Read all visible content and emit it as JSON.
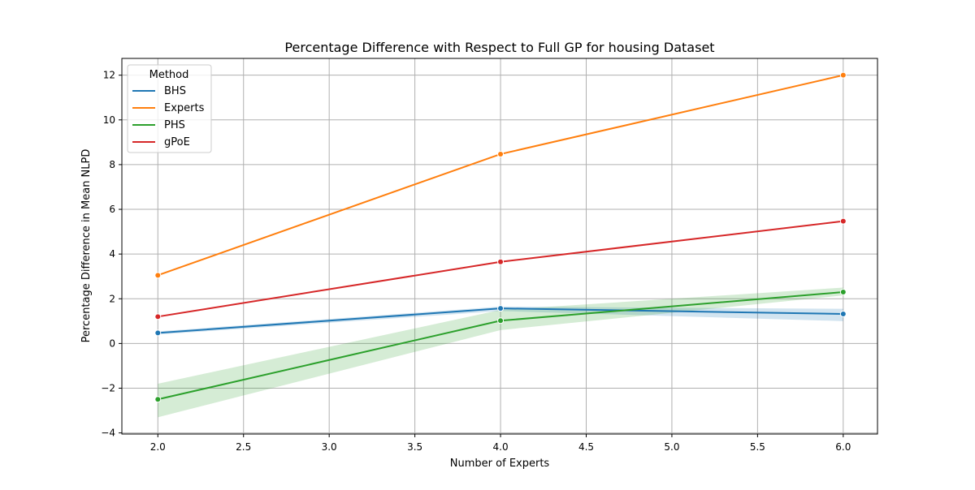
{
  "chart_data": {
    "type": "line",
    "title": "Percentage Difference with Respect to Full GP for housing Dataset",
    "xlabel": "Number of Experts",
    "ylabel": "Percentage Difference in Mean NLPD",
    "xlim": [
      1.79,
      6.2
    ],
    "ylim": [
      -4.05,
      12.75
    ],
    "xticks": [
      2.0,
      2.5,
      3.0,
      3.5,
      4.0,
      4.5,
      5.0,
      5.5,
      6.0
    ],
    "xtick_labels": [
      "2.0",
      "2.5",
      "3.0",
      "3.5",
      "4.0",
      "4.5",
      "5.0",
      "5.5",
      "6.0"
    ],
    "yticks": [
      -4,
      -2,
      0,
      2,
      4,
      6,
      8,
      10,
      12
    ],
    "ytick_labels": [
      "−4",
      "−2",
      "0",
      "2",
      "4",
      "6",
      "8",
      "10",
      "12"
    ],
    "grid": true,
    "legend": {
      "title": "Method",
      "placement": "top-left"
    },
    "x": [
      2.0,
      4.0,
      6.0
    ],
    "series": [
      {
        "name": "BHS",
        "color": "#1f77b4",
        "values": [
          0.47,
          1.57,
          1.32
        ],
        "lower": [
          0.4,
          1.45,
          1.0
        ],
        "upper": [
          0.54,
          1.65,
          1.55
        ]
      },
      {
        "name": "Experts",
        "color": "#ff7f0e",
        "values": [
          3.05,
          8.47,
          12.0
        ],
        "lower": [
          3.05,
          8.47,
          12.0
        ],
        "upper": [
          3.05,
          8.47,
          12.0
        ]
      },
      {
        "name": "PHS",
        "color": "#2ca02c",
        "values": [
          -2.5,
          1.02,
          2.3
        ],
        "lower": [
          -3.3,
          0.6,
          2.15
        ],
        "upper": [
          -1.8,
          1.5,
          2.5
        ]
      },
      {
        "name": "gPoE",
        "color": "#d62728",
        "values": [
          1.2,
          3.65,
          5.47
        ],
        "lower": [
          1.2,
          3.65,
          5.47
        ],
        "upper": [
          1.2,
          3.65,
          5.47
        ]
      }
    ]
  }
}
